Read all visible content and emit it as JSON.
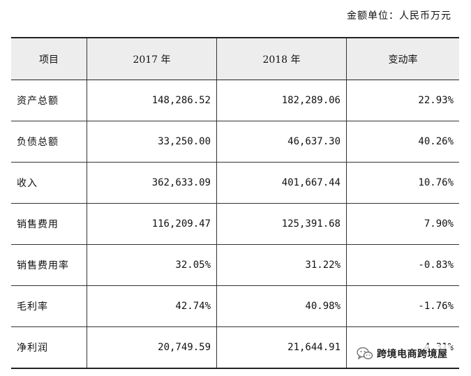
{
  "unit_label": "金额单位：人民币万元",
  "table": {
    "headers": [
      "项目",
      "2017 年",
      "2018 年",
      "变动率"
    ],
    "rows": [
      [
        "资产总额",
        "148,286.52",
        "182,289.06",
        "22.93%"
      ],
      [
        "负债总额",
        "33,250.00",
        "46,637.30",
        "40.26%"
      ],
      [
        "收入",
        "362,633.09",
        "401,667.44",
        "10.76%"
      ],
      [
        "销售费用",
        "116,209.47",
        "125,391.68",
        "7.90%"
      ],
      [
        "销售费用率",
        "32.05%",
        "31.22%",
        "-0.83%"
      ],
      [
        "毛利率",
        "42.74%",
        "40.98%",
        "-1.76%"
      ],
      [
        "净利润",
        "20,749.59",
        "21,644.91",
        "4.31%"
      ]
    ]
  },
  "watermark": {
    "icon": "wechat-icon",
    "text": "跨境电商跨境屋"
  }
}
